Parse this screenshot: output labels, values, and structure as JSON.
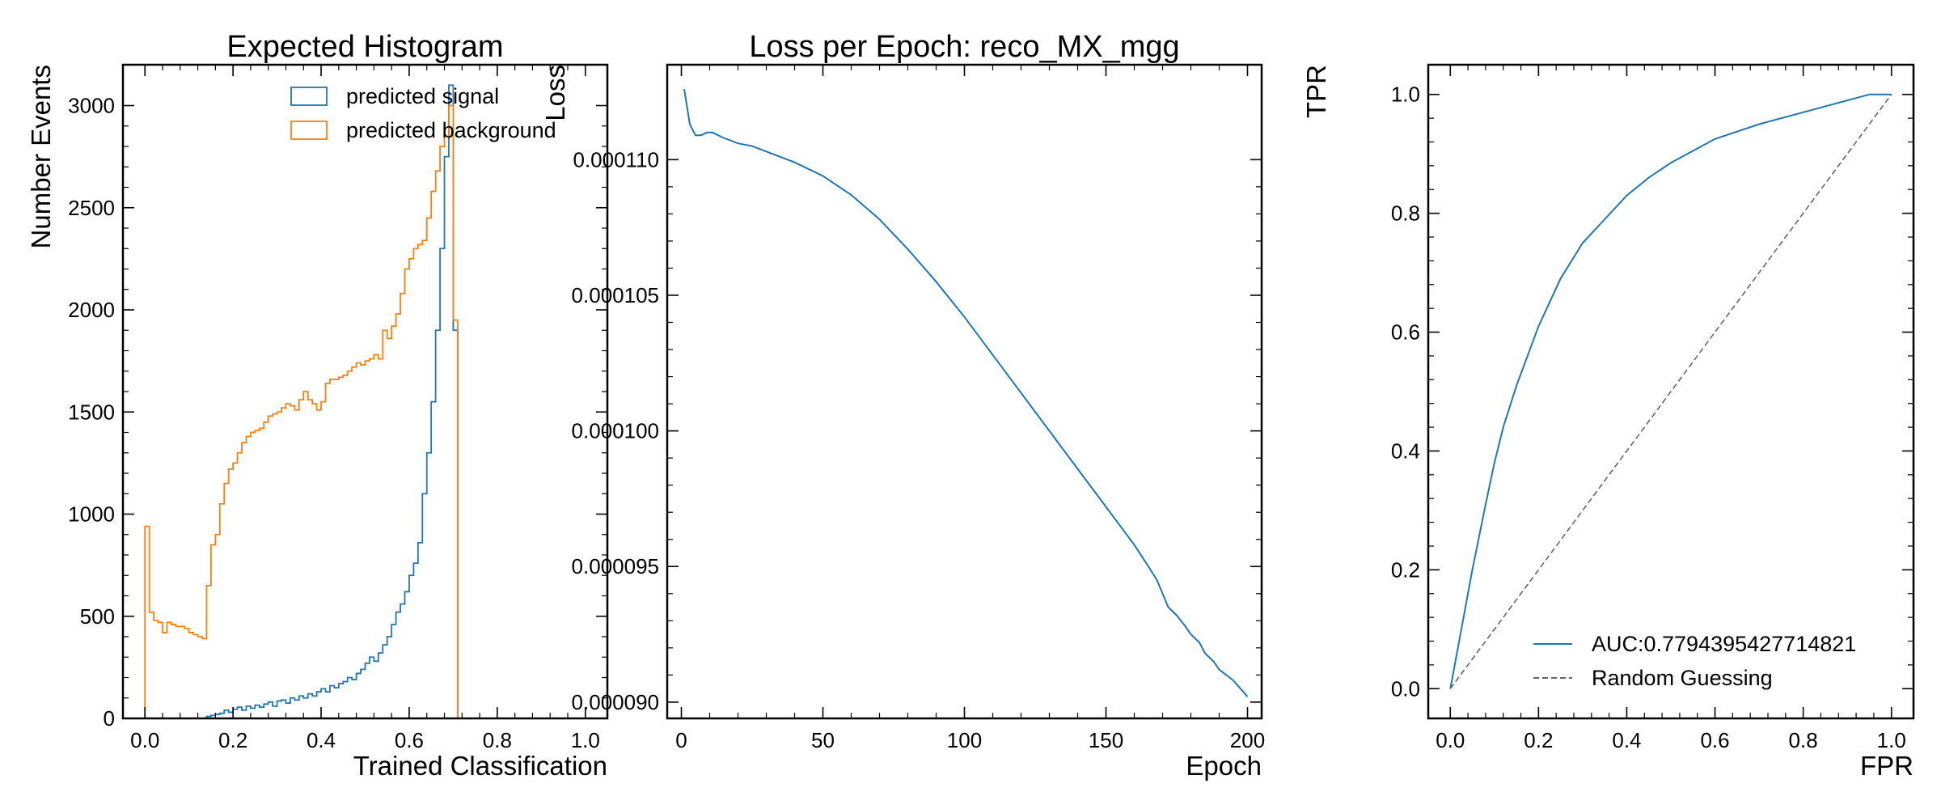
{
  "chart_data": [
    {
      "type": "histogram",
      "title": "Expected Histogram",
      "xlabel": "Trained Classification",
      "ylabel": "Number Events",
      "xlim": [
        -0.05,
        1.05
      ],
      "ylim": [
        0,
        3200
      ],
      "xticks": [
        0.0,
        0.2,
        0.4,
        0.6,
        0.8,
        1.0
      ],
      "xtick_labels": [
        "0.0",
        "0.2",
        "0.4",
        "0.6",
        "0.8",
        "1.0"
      ],
      "yticks": [
        0,
        500,
        1000,
        1500,
        2000,
        2500,
        3000
      ],
      "ytick_labels": [
        "0",
        "500",
        "1000",
        "1500",
        "2000",
        "2500",
        "3000"
      ],
      "legend": {
        "placement": "top-right",
        "entries": [
          "predicted signal",
          "predicted background"
        ]
      },
      "bin_start": 0.0,
      "bin_width": 0.01,
      "series": [
        {
          "name": "predicted signal",
          "color": "#1f77b4",
          "values": [
            0,
            0,
            0,
            0,
            0,
            0,
            0,
            0,
            0,
            0,
            0,
            0,
            0,
            0,
            10,
            15,
            20,
            25,
            40,
            30,
            45,
            55,
            40,
            60,
            50,
            65,
            55,
            70,
            80,
            60,
            85,
            90,
            75,
            100,
            90,
            110,
            100,
            120,
            110,
            130,
            145,
            130,
            160,
            150,
            170,
            180,
            200,
            190,
            220,
            240,
            270,
            300,
            280,
            320,
            360,
            400,
            460,
            520,
            560,
            620,
            700,
            760,
            860,
            1100,
            1300,
            1550,
            1900,
            2300,
            2750,
            3100,
            1900
          ]
        },
        {
          "name": "predicted background",
          "color": "#ff7f0e",
          "values": [
            940,
            520,
            480,
            470,
            420,
            470,
            460,
            450,
            450,
            440,
            420,
            410,
            400,
            390,
            650,
            850,
            900,
            1050,
            1150,
            1220,
            1250,
            1300,
            1350,
            1380,
            1400,
            1410,
            1420,
            1450,
            1480,
            1490,
            1500,
            1520,
            1540,
            1530,
            1510,
            1560,
            1600,
            1560,
            1540,
            1510,
            1550,
            1640,
            1660,
            1660,
            1670,
            1680,
            1700,
            1720,
            1740,
            1730,
            1750,
            1760,
            1780,
            1760,
            1900,
            1860,
            1920,
            1980,
            2080,
            2200,
            2250,
            2300,
            2320,
            2340,
            2450,
            2580,
            2680,
            2800,
            2850,
            3000,
            1950
          ]
        }
      ]
    },
    {
      "type": "line",
      "title": "Loss per Epoch: reco_MX_mgg",
      "xlabel": "Epoch",
      "ylabel": "Loss",
      "xlim": [
        -5,
        205
      ],
      "ylim": [
        8.94e-05,
        0.0001135
      ],
      "xticks": [
        0,
        50,
        100,
        150,
        200
      ],
      "xtick_labels": [
        "0",
        "50",
        "100",
        "150",
        "200"
      ],
      "yticks": [
        9e-05,
        9.5e-05,
        0.0001,
        0.000105,
        0.00011
      ],
      "ytick_labels": [
        "0.000090",
        "0.000095",
        "0.000100",
        "0.000105",
        "0.000110"
      ],
      "series": [
        {
          "color": "#1f77b4",
          "x": [
            1,
            3,
            5,
            7,
            9,
            11,
            13,
            15,
            20,
            25,
            30,
            40,
            50,
            60,
            70,
            80,
            90,
            100,
            110,
            120,
            130,
            140,
            150,
            160,
            165,
            168,
            170,
            172,
            175,
            178,
            180,
            183,
            185,
            188,
            190,
            195,
            200
          ],
          "y": [
            0.0001126,
            0.0001113,
            0.0001109,
            0.0001109,
            0.000111,
            0.000111,
            0.0001109,
            0.0001108,
            0.0001106,
            0.0001105,
            0.0001103,
            0.0001099,
            0.0001094,
            0.0001087,
            0.0001078,
            0.0001067,
            0.0001055,
            0.0001042,
            0.0001028,
            0.0001014,
            0.0001,
            9.86e-05,
            9.72e-05,
            9.58e-05,
            9.5e-05,
            9.45e-05,
            9.4e-05,
            9.35e-05,
            9.32e-05,
            9.28e-05,
            9.25e-05,
            9.22e-05,
            9.18e-05,
            9.15e-05,
            9.12e-05,
            9.08e-05,
            9.02e-05
          ]
        }
      ]
    },
    {
      "type": "line",
      "title": "",
      "xlabel": "FPR",
      "ylabel": "TPR",
      "xlim": [
        -0.05,
        1.05
      ],
      "ylim": [
        -0.05,
        1.05
      ],
      "xticks": [
        0.0,
        0.2,
        0.4,
        0.6,
        0.8,
        1.0
      ],
      "xtick_labels": [
        "0.0",
        "0.2",
        "0.4",
        "0.6",
        "0.8",
        "1.0"
      ],
      "yticks": [
        0.0,
        0.2,
        0.4,
        0.6,
        0.8,
        1.0
      ],
      "ytick_labels": [
        "0.0",
        "0.2",
        "0.4",
        "0.6",
        "0.8",
        "1.0"
      ],
      "legend": {
        "placement": "bottom-right",
        "entries": [
          "AUC:0.7794395427714821",
          "Random Guessing"
        ]
      },
      "series": [
        {
          "name": "AUC:0.7794395427714821",
          "color": "#1f77b4",
          "style": "solid",
          "x": [
            0,
            0.02,
            0.05,
            0.08,
            0.1,
            0.12,
            0.15,
            0.18,
            0.2,
            0.25,
            0.3,
            0.35,
            0.4,
            0.45,
            0.5,
            0.55,
            0.6,
            0.7,
            0.8,
            0.9,
            0.95,
            1.0
          ],
          "y": [
            0,
            0.08,
            0.2,
            0.31,
            0.38,
            0.44,
            0.51,
            0.57,
            0.61,
            0.69,
            0.75,
            0.79,
            0.83,
            0.86,
            0.885,
            0.905,
            0.925,
            0.95,
            0.97,
            0.99,
            1.0,
            1.0
          ]
        },
        {
          "name": "Random Guessing",
          "color": "#666666",
          "style": "dashed",
          "x": [
            0,
            1
          ],
          "y": [
            0,
            1
          ]
        }
      ]
    }
  ]
}
